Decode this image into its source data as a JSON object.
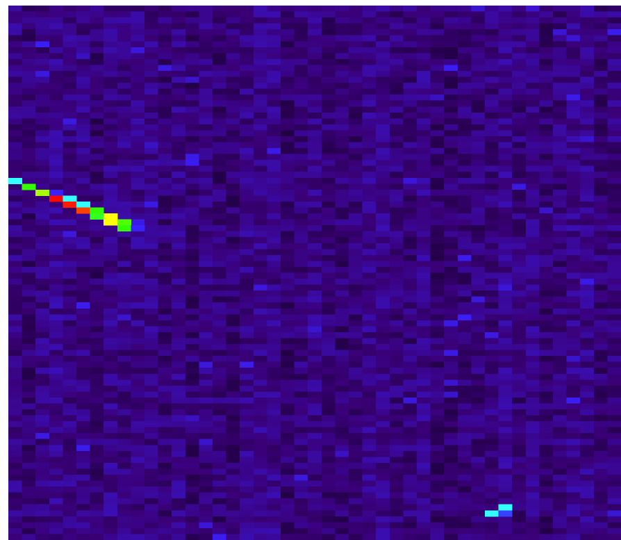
{
  "chart_data": {
    "type": "heatmap",
    "columns": 45,
    "rows": 90,
    "vlim": [
      0,
      1
    ],
    "colormap": [
      {
        "value": 0,
        "color": "#0e001c"
      },
      {
        "value": 0.1,
        "color": "#3a0078"
      },
      {
        "value": 0.25,
        "color": "#3a20ff"
      },
      {
        "value": 0.45,
        "color": "#33ffff"
      },
      {
        "value": 0.6,
        "color": "#33ff00"
      },
      {
        "value": 0.74,
        "color": "#ffff00"
      },
      {
        "value": 0.86,
        "color": "#ff4000"
      },
      {
        "value": 0.96,
        "color": "#ff0000"
      }
    ],
    "x": [
      0,
      1,
      2,
      3,
      3,
      4,
      4,
      5,
      5,
      6,
      6,
      7,
      7,
      8,
      8,
      9,
      35,
      36,
      36
    ],
    "y": [
      29,
      30,
      31,
      31,
      32,
      32,
      33,
      33,
      34,
      34,
      35,
      35,
      36,
      36,
      37,
      37,
      85,
      84,
      85
    ],
    "values": [
      0.45,
      0.6,
      0.68,
      0.25,
      0.95,
      0.45,
      0.92,
      0.45,
      0.86,
      0.6,
      0.58,
      0.74,
      0.74,
      0.62,
      0.6,
      0.25,
      0.45,
      0.45,
      0.28
    ]
  }
}
